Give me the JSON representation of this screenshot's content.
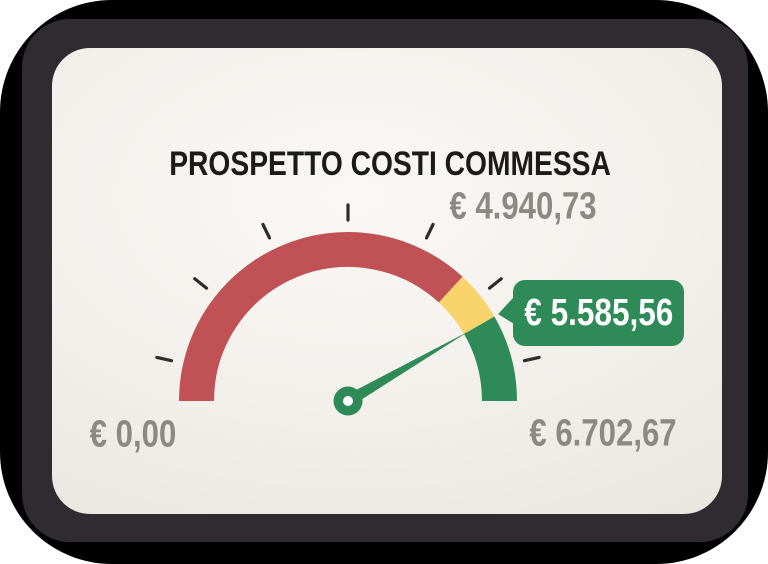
{
  "window": {
    "outer_background": "#000000",
    "frame_color": "#2f2b31",
    "card_color": "#f3f0ec"
  },
  "chart_data": {
    "type": "gauge",
    "title": "PROSPETTO COSTI COMMESSA",
    "min": 0,
    "max": 6702.67,
    "value": 5585.56,
    "span_degrees": 180,
    "labels": {
      "min": "€ 0,00",
      "threshold": "€ 4.940,73",
      "value": "€ 5.585,56",
      "max": "€ 6.702,67"
    },
    "zones": [
      {
        "name": "red",
        "from": 0,
        "to": 4940.73,
        "color": "#c05154"
      },
      {
        "name": "yellow",
        "from": 4940.73,
        "to": 5585.56,
        "color": "#f9d46d"
      },
      {
        "name": "green",
        "from": 5585.56,
        "to": 6702.67,
        "color": "#2e8b57"
      }
    ],
    "tick_count": 7,
    "tick_color": "#2c2c2a",
    "needle_color": "#2e8b57",
    "hub_hole_color": "#ffffff",
    "label_color": "#8a8984",
    "title_color": "#1b1b1a",
    "callout": {
      "background": "#2e8b57",
      "text_color": "#ffffff"
    }
  }
}
